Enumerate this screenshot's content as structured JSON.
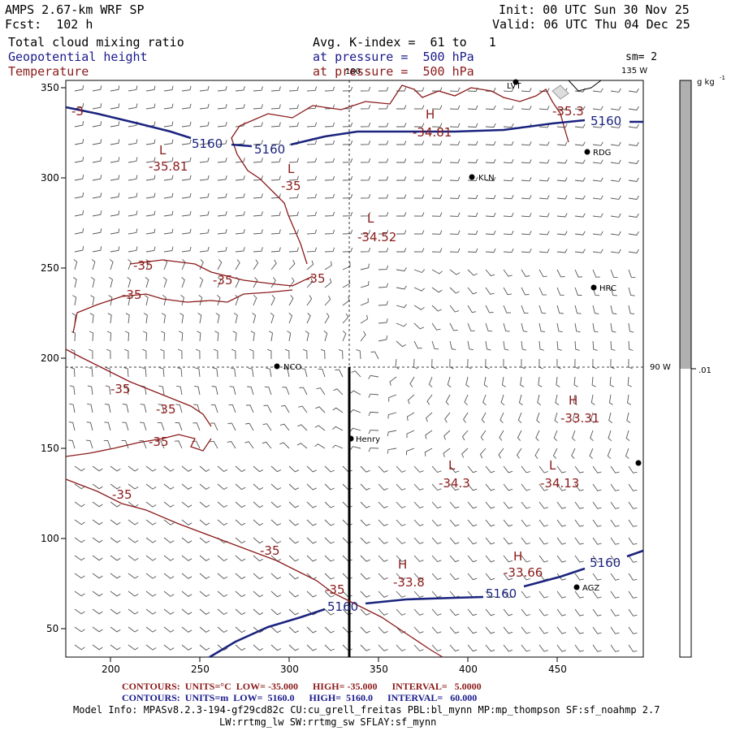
{
  "header": {
    "model": "AMPS 2.67-km WRF SP",
    "forecast": "Fcst:  102 h",
    "init": "Init: 00 UTC Sun 30 Nov 25",
    "valid": "Valid: 06 UTC Thu 04 Dec 25",
    "field1": "Total cloud mixing ratio",
    "field2": "Geopotential height",
    "field3": "Temperature",
    "avg": "Avg. K-index =  61 to   1",
    "pressure1": "at pressure =  500 hPa",
    "pressure2": "at pressure =  500 hPa",
    "sm": "sm= 2"
  },
  "map": {
    "x_ticks": [
      "200",
      "250",
      "300",
      "350",
      "400",
      "450"
    ],
    "y_ticks": [
      "350",
      "300",
      "250",
      "200",
      "150",
      "100",
      "50"
    ],
    "meridian_labels": {
      "top": "180",
      "upper_right": "135 W",
      "right": "90 W"
    },
    "stations": [
      {
        "name": "LVT"
      },
      {
        "name": "RDG"
      },
      {
        "name": "KLN"
      },
      {
        "name": "HRC"
      },
      {
        "name": "NCO"
      },
      {
        "name": "Henry"
      },
      {
        "name": "AGZ"
      },
      {
        "name": ""
      }
    ],
    "height_labels": [
      "5160",
      "5160",
      "5160",
      "5160",
      "5160",
      "5160"
    ],
    "temp_labels": [
      "-35",
      "-35",
      "-35",
      "-35",
      "-35",
      "-35",
      "-35",
      "-35",
      "-35",
      "-35",
      "-35.3",
      "-3"
    ],
    "extrema": [
      {
        "type": "H",
        "value": "-34.81"
      },
      {
        "type": "L",
        "value": "-35.81"
      },
      {
        "type": "L",
        "value": "-35"
      },
      {
        "type": "L",
        "value": "-34.52"
      },
      {
        "type": "H",
        "value": "-33.31"
      },
      {
        "type": "L",
        "value": "-34.3"
      },
      {
        "type": "L",
        "value": "-34.13"
      },
      {
        "type": "H",
        "value": "-33.8"
      },
      {
        "type": "H",
        "value": "-33.66"
      }
    ]
  },
  "colorbar": {
    "units": "g kg",
    "units_exp": "-1",
    "tick": ".01"
  },
  "footer": {
    "temp_contours": "CONTOURS:  UNITS=°C  LOW= -35.000      HIGH= -35.000      INTERVAL=   5.0000",
    "height_contours": "CONTOURS:  UNITS=m  LOW=  5160.0      HIGH=  5160.0      INTERVAL=   60.000",
    "model_info1": "Model Info: MPASv8.2.3-194-gf29cd82c CU:cu_grell_freitas PBL:bl_mynn MP:mp_thompson SF:sf_noahmp 2.7",
    "model_info2": "LW:rrtmg_lw SW:rrtmg_sw SFLAY:sf_mynn"
  },
  "colors": {
    "height": "#1a237e",
    "temperature": "#8b1a1a",
    "cloud": "#b0b0b0"
  }
}
